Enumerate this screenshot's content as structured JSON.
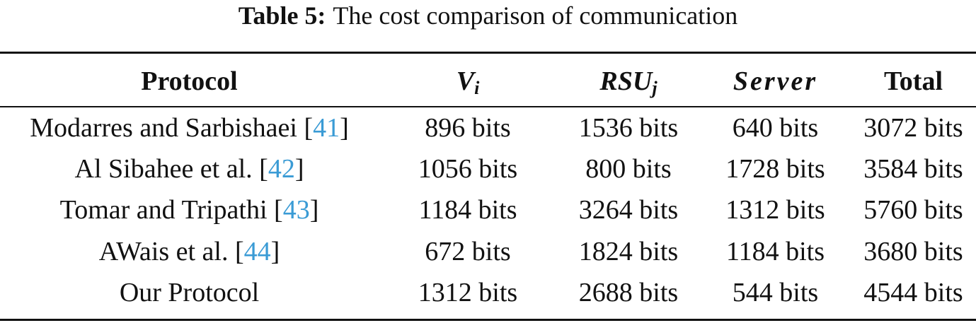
{
  "caption": {
    "label": "Table 5:",
    "text": "The cost comparison of communication"
  },
  "table": {
    "headers": {
      "protocol": "Protocol",
      "vi": {
        "base": "V",
        "sub": "i"
      },
      "rsu": {
        "base": "RSU",
        "sub": "j"
      },
      "server": "Server",
      "total": "Total"
    },
    "rows": [
      {
        "name": "Modarres and Sarbishaei ",
        "ref": "41",
        "vi": "896 bits",
        "rsu": "1536 bits",
        "server": "640 bits",
        "total": "3072 bits"
      },
      {
        "name": "Al Sibahee et al. ",
        "ref": "42",
        "vi": "1056 bits",
        "rsu": "800 bits",
        "server": "1728 bits",
        "total": "3584 bits"
      },
      {
        "name": "Tomar and Tripathi ",
        "ref": "43",
        "vi": "1184 bits",
        "rsu": "3264 bits",
        "server": "1312 bits",
        "total": "5760 bits"
      },
      {
        "name": "AWais et al. ",
        "ref": "44",
        "vi": "672 bits",
        "rsu": "1824 bits",
        "server": "1184 bits",
        "total": "3680 bits"
      },
      {
        "name": "Our Protocol",
        "ref": "",
        "vi": "1312 bits",
        "rsu": "2688 bits",
        "server": "544 bits",
        "total": "4544 bits"
      }
    ]
  },
  "colors": {
    "reference_link": "#3a9bd5",
    "text": "#111111"
  }
}
